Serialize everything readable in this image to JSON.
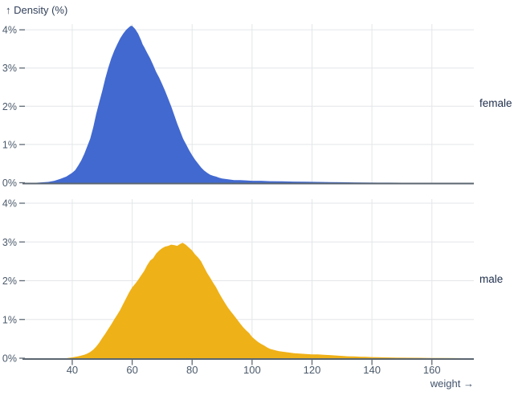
{
  "title": "↑ Density (%)",
  "colors": {
    "female_fill": "#4269d0",
    "male_fill": "#efb118",
    "gridline": "#e3e6e9",
    "baseline": "#5b6670",
    "tick_mark": "#5f6a75",
    "tick_text": "#4b5a6b",
    "facet_label_text": "#22314e",
    "title_text": "#33425b"
  },
  "chart_data": {
    "type": "area",
    "title": "Density (%)",
    "xlabel": "weight",
    "ylabel": "Density (%)",
    "x_axis_label": "weight →",
    "x_domain": [
      23.4,
      174
    ],
    "y_domain": [
      0,
      4.2
    ],
    "x_ticks": [
      40,
      60,
      80,
      100,
      120,
      140,
      160
    ],
    "y_ticks": [
      0,
      1,
      2,
      3,
      4
    ],
    "y_tick_suffix": "%",
    "grid": true,
    "legend_position": "right-facet-labels",
    "facets": [
      {
        "label": "female",
        "color": "#4269d0",
        "peak": {
          "weight": 59.5,
          "density_pct": 4.1
        },
        "points": [
          [
            28,
            0
          ],
          [
            30,
            0.01
          ],
          [
            32,
            0.02
          ],
          [
            34,
            0.05
          ],
          [
            36,
            0.1
          ],
          [
            38,
            0.16
          ],
          [
            40,
            0.26
          ],
          [
            41,
            0.33
          ],
          [
            42,
            0.45
          ],
          [
            43,
            0.58
          ],
          [
            44,
            0.75
          ],
          [
            45,
            0.95
          ],
          [
            46,
            1.15
          ],
          [
            47,
            1.45
          ],
          [
            48,
            1.8
          ],
          [
            49,
            2.1
          ],
          [
            50,
            2.4
          ],
          [
            51,
            2.72
          ],
          [
            52,
            3.0
          ],
          [
            53,
            3.25
          ],
          [
            54,
            3.45
          ],
          [
            55,
            3.62
          ],
          [
            56,
            3.78
          ],
          [
            57,
            3.9
          ],
          [
            58,
            4.0
          ],
          [
            59,
            4.07
          ],
          [
            59.5,
            4.1
          ],
          [
            60,
            4.1
          ],
          [
            61,
            4.02
          ],
          [
            62,
            3.9
          ],
          [
            63,
            3.72
          ],
          [
            63.5,
            3.62
          ],
          [
            64,
            3.55
          ],
          [
            65,
            3.4
          ],
          [
            66,
            3.25
          ],
          [
            67,
            3.08
          ],
          [
            68,
            2.9
          ],
          [
            69,
            2.75
          ],
          [
            70,
            2.58
          ],
          [
            71,
            2.4
          ],
          [
            72,
            2.2
          ],
          [
            73,
            2.0
          ],
          [
            74,
            1.78
          ],
          [
            75,
            1.55
          ],
          [
            76,
            1.35
          ],
          [
            77,
            1.15
          ],
          [
            78,
            1.0
          ],
          [
            79,
            0.85
          ],
          [
            80,
            0.72
          ],
          [
            81,
            0.6
          ],
          [
            82,
            0.5
          ],
          [
            83,
            0.4
          ],
          [
            84,
            0.32
          ],
          [
            85,
            0.26
          ],
          [
            86,
            0.21
          ],
          [
            87,
            0.18
          ],
          [
            88,
            0.16
          ],
          [
            89,
            0.13
          ],
          [
            90,
            0.11
          ],
          [
            91,
            0.1
          ],
          [
            92,
            0.09
          ],
          [
            94,
            0.07
          ],
          [
            96,
            0.07
          ],
          [
            98,
            0.06
          ],
          [
            100,
            0.05
          ],
          [
            103,
            0.05
          ],
          [
            106,
            0.04
          ],
          [
            110,
            0.035
          ],
          [
            114,
            0.03
          ],
          [
            118,
            0.025
          ],
          [
            122,
            0.02
          ],
          [
            126,
            0.015
          ],
          [
            130,
            0.012
          ],
          [
            134,
            0.008
          ],
          [
            138,
            0.005
          ],
          [
            142,
            0.003
          ],
          [
            146,
            0.002
          ],
          [
            150,
            0.001
          ],
          [
            155,
            0
          ],
          [
            174,
            0
          ]
        ]
      },
      {
        "label": "male",
        "color": "#efb118",
        "peak": {
          "weight": 76.8,
          "density_pct": 2.98
        },
        "points": [
          [
            38,
            0
          ],
          [
            40,
            0.02
          ],
          [
            42,
            0.05
          ],
          [
            44,
            0.09
          ],
          [
            45,
            0.12
          ],
          [
            46,
            0.16
          ],
          [
            47,
            0.22
          ],
          [
            48,
            0.3
          ],
          [
            49,
            0.4
          ],
          [
            50,
            0.52
          ],
          [
            51,
            0.63
          ],
          [
            52,
            0.75
          ],
          [
            53,
            0.87
          ],
          [
            54,
            1.0
          ],
          [
            55,
            1.12
          ],
          [
            56,
            1.25
          ],
          [
            57,
            1.4
          ],
          [
            58,
            1.55
          ],
          [
            59,
            1.7
          ],
          [
            60,
            1.83
          ],
          [
            61,
            1.92
          ],
          [
            62,
            2.02
          ],
          [
            63,
            2.14
          ],
          [
            64,
            2.25
          ],
          [
            65,
            2.4
          ],
          [
            66,
            2.52
          ],
          [
            67,
            2.58
          ],
          [
            68,
            2.7
          ],
          [
            69,
            2.78
          ],
          [
            70,
            2.84
          ],
          [
            71,
            2.88
          ],
          [
            72,
            2.9
          ],
          [
            73,
            2.93
          ],
          [
            74,
            2.92
          ],
          [
            75,
            2.9
          ],
          [
            76,
            2.95
          ],
          [
            76.8,
            2.98
          ],
          [
            77.5,
            2.95
          ],
          [
            78,
            2.92
          ],
          [
            79,
            2.85
          ],
          [
            80,
            2.78
          ],
          [
            81,
            2.68
          ],
          [
            82,
            2.6
          ],
          [
            83,
            2.5
          ],
          [
            84,
            2.35
          ],
          [
            85,
            2.2
          ],
          [
            86,
            2.08
          ],
          [
            87,
            1.95
          ],
          [
            88,
            1.83
          ],
          [
            89,
            1.68
          ],
          [
            90,
            1.55
          ],
          [
            91,
            1.42
          ],
          [
            92,
            1.3
          ],
          [
            93,
            1.2
          ],
          [
            94,
            1.1
          ],
          [
            95,
            1.0
          ],
          [
            96,
            0.9
          ],
          [
            97,
            0.8
          ],
          [
            98,
            0.72
          ],
          [
            99,
            0.65
          ],
          [
            100,
            0.55
          ],
          [
            101,
            0.48
          ],
          [
            102,
            0.42
          ],
          [
            103,
            0.37
          ],
          [
            104,
            0.33
          ],
          [
            105,
            0.28
          ],
          [
            106,
            0.24
          ],
          [
            107,
            0.22
          ],
          [
            108,
            0.2
          ],
          [
            109,
            0.18
          ],
          [
            110,
            0.17
          ],
          [
            112,
            0.15
          ],
          [
            114,
            0.13
          ],
          [
            116,
            0.12
          ],
          [
            118,
            0.11
          ],
          [
            120,
            0.1
          ],
          [
            122,
            0.1
          ],
          [
            124,
            0.09
          ],
          [
            126,
            0.08
          ],
          [
            128,
            0.07
          ],
          [
            130,
            0.06
          ],
          [
            132,
            0.05
          ],
          [
            134,
            0.045
          ],
          [
            136,
            0.04
          ],
          [
            138,
            0.035
          ],
          [
            140,
            0.03
          ],
          [
            142,
            0.025
          ],
          [
            145,
            0.02
          ],
          [
            148,
            0.015
          ],
          [
            152,
            0.012
          ],
          [
            156,
            0.01
          ],
          [
            160,
            0.007
          ],
          [
            164,
            0.004
          ],
          [
            168,
            0.002
          ],
          [
            171,
            0.001
          ],
          [
            174,
            0
          ]
        ]
      }
    ]
  }
}
